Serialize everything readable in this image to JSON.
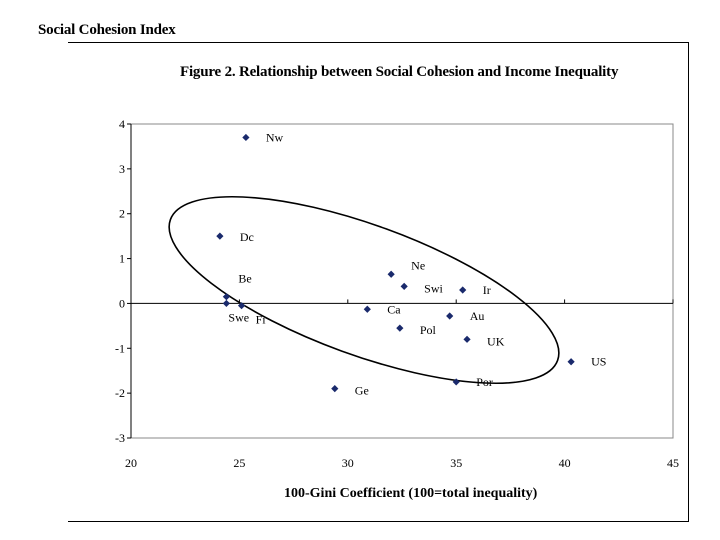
{
  "chart_data": {
    "type": "scatter",
    "title": "Figure 2. Relationship between Social Cohesion and Income Inequality",
    "ylabel": "Social Cohesion Index",
    "xlabel": "100-Gini Coefficient (100=total inequality)",
    "xlim": [
      20,
      45
    ],
    "ylim": [
      -3,
      4
    ],
    "xticks": [
      20,
      25,
      30,
      35,
      40,
      45
    ],
    "yticks": [
      4,
      3,
      2,
      1,
      0,
      -1,
      -2,
      -3
    ],
    "grid": false,
    "legend": "none",
    "annotation": "ellipse enclosing the main cluster of countries",
    "marker_color": "#1a2a6c",
    "points": [
      {
        "label": "Nw",
        "x": 25.3,
        "y": 3.7
      },
      {
        "label": "Dc",
        "x": 24.1,
        "y": 1.5
      },
      {
        "label": "Be",
        "x": 24.4,
        "y": 0.15
      },
      {
        "label": "Swe",
        "x": 24.4,
        "y": 0.0
      },
      {
        "label": "Fi",
        "x": 25.1,
        "y": -0.05
      },
      {
        "label": "Ne",
        "x": 32.0,
        "y": 0.65
      },
      {
        "label": "Swi",
        "x": 32.6,
        "y": 0.38
      },
      {
        "label": "Ir",
        "x": 35.3,
        "y": 0.3
      },
      {
        "label": "Ca",
        "x": 30.9,
        "y": -0.13
      },
      {
        "label": "Au",
        "x": 34.7,
        "y": -0.28
      },
      {
        "label": "Pol",
        "x": 32.4,
        "y": -0.55
      },
      {
        "label": "UK",
        "x": 35.5,
        "y": -0.8
      },
      {
        "label": "US",
        "x": 40.3,
        "y": -1.3
      },
      {
        "label": "Por",
        "x": 35.0,
        "y": -1.75
      },
      {
        "label": "Ge",
        "x": 29.4,
        "y": -1.9
      }
    ]
  }
}
